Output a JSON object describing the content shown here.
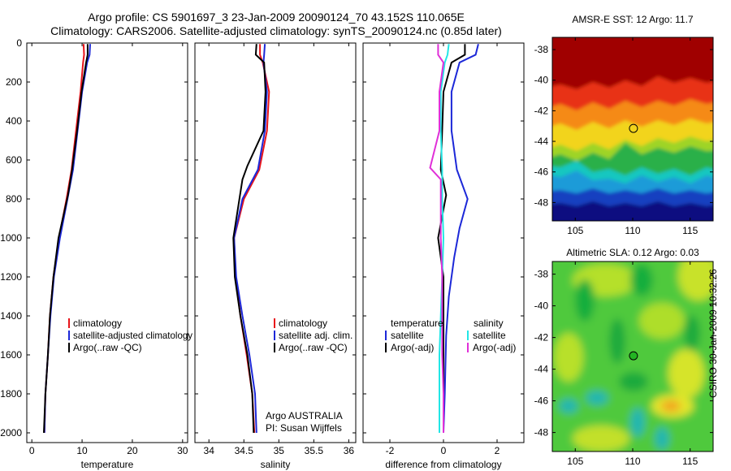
{
  "header": {
    "line1": "Argo profile: CS 5901697_3 23-Jan-2009 20090124_70 43.152S 110.065E",
    "line2": "Climatology: CARS2006. Satellite-adjusted climatology: synTS_20090124.nc (0.85d later)"
  },
  "side_label": "CSIRO 30-Jan-2009 10:32:26",
  "colors": {
    "red": "#e8141a",
    "blue": "#1c28d8",
    "black": "#000000",
    "cyan": "#22e6e6",
    "magenta": "#e030d8",
    "marker_fill": "#22b422"
  },
  "chart_data": [
    {
      "type": "line",
      "xlabel": "temperature",
      "ylabel": "",
      "xlim": [
        -1,
        31
      ],
      "ylim": [
        0,
        2050
      ],
      "x_ticks": [
        0,
        10,
        20,
        30
      ],
      "y_ticks": [
        0,
        200,
        400,
        600,
        800,
        1000,
        1200,
        1400,
        1600,
        1800,
        2000
      ],
      "legend": [
        "climatology",
        "satellite-adjusted climatology",
        "Argo(..raw -QC)"
      ],
      "series": [
        {
          "name": "climatology",
          "color": "red",
          "x": [
            10.3,
            10.4,
            10.2,
            9.7,
            8.8,
            7.9,
            6.9,
            5.4,
            4.3,
            3.6,
            3.2,
            2.7,
            2.5
          ],
          "y": [
            5,
            60,
            100,
            250,
            450,
            650,
            800,
            1000,
            1200,
            1400,
            1600,
            1800,
            2000
          ]
        },
        {
          "name": "satellite-adjusted climatology",
          "color": "blue",
          "x": [
            11.6,
            11.5,
            11.0,
            10.0,
            9.1,
            8.2,
            7.1,
            5.6,
            4.4,
            3.7,
            3.2,
            2.7,
            2.5
          ],
          "y": [
            5,
            60,
            100,
            250,
            450,
            650,
            800,
            1000,
            1200,
            1400,
            1600,
            1800,
            2000
          ]
        },
        {
          "name": "Argo(..raw -QC)",
          "color": "black",
          "x": [
            11.1,
            11.1,
            10.8,
            9.9,
            9.0,
            8.0,
            7.2,
            5.3,
            4.3,
            3.6,
            3.2,
            2.7,
            2.4
          ],
          "y": [
            5,
            60,
            100,
            250,
            450,
            650,
            780,
            1000,
            1200,
            1400,
            1600,
            1800,
            2000
          ]
        }
      ]
    },
    {
      "type": "line",
      "xlabel": "salinity",
      "ylabel": "",
      "xlim": [
        33.8,
        36.1
      ],
      "ylim": [
        0,
        2050
      ],
      "x_ticks": [
        34,
        34.5,
        35,
        35.5,
        36
      ],
      "x_tick_labels": [
        "34",
        "34.5",
        "35",
        "35.5",
        "36"
      ],
      "legend": [
        "climatology",
        "satellite adj. clim.",
        "Argo(..raw -QC)"
      ],
      "annotation": [
        "Argo AUSTRALIA",
        "PI: Susan Wijffels"
      ],
      "series": [
        {
          "name": "climatology",
          "color": "red",
          "x": [
            34.73,
            34.73,
            34.77,
            34.86,
            34.83,
            34.72,
            34.5,
            34.36,
            34.38,
            34.45,
            34.54,
            34.62,
            34.65
          ],
          "y": [
            5,
            60,
            100,
            250,
            450,
            650,
            800,
            1000,
            1200,
            1400,
            1600,
            1800,
            2000
          ]
        },
        {
          "name": "satellite adj. clim.",
          "color": "blue",
          "x": [
            34.8,
            34.79,
            34.78,
            34.83,
            34.8,
            34.7,
            34.48,
            34.36,
            34.39,
            34.48,
            34.58,
            34.66,
            34.68
          ],
          "y": [
            5,
            60,
            100,
            250,
            450,
            650,
            800,
            1000,
            1200,
            1400,
            1600,
            1800,
            2000
          ]
        },
        {
          "name": "Argo(..raw -QC)",
          "color": "black",
          "x": [
            34.68,
            34.67,
            34.79,
            34.81,
            34.78,
            34.55,
            34.48,
            34.35,
            34.37,
            34.45,
            34.55,
            34.62,
            34.64
          ],
          "y": [
            5,
            60,
            100,
            250,
            450,
            630,
            700,
            1000,
            1200,
            1400,
            1600,
            1800,
            2000
          ]
        }
      ]
    },
    {
      "type": "line",
      "xlabel": "difference from climatology",
      "ylabel": "",
      "xlim": [
        -3,
        3
      ],
      "ylim": [
        0,
        2050
      ],
      "x_ticks": [
        -2,
        0,
        2
      ],
      "legend_headers": [
        "temperature",
        "salinity"
      ],
      "legend_left": [
        "satellite",
        "Argo(-adj)"
      ],
      "legend_right": [
        "satellite",
        "Argo(-adj)"
      ],
      "series": [
        {
          "name": "temperature satellite",
          "color": "blue",
          "x": [
            1.3,
            1.2,
            0.6,
            0.3,
            0.3,
            0.5,
            0.9,
            0.6,
            0.4,
            0.2,
            0.1,
            0.05,
            0.0
          ],
          "y": [
            5,
            60,
            100,
            250,
            450,
            650,
            800,
            950,
            1100,
            1300,
            1500,
            1800,
            2000
          ]
        },
        {
          "name": "temperature Argo(-adj)",
          "color": "black",
          "x": [
            0.8,
            0.8,
            0.3,
            0.0,
            -0.05,
            -0.1,
            0.1,
            -0.2,
            0.0,
            0.0,
            0.0,
            0.0,
            0.0
          ],
          "y": [
            5,
            60,
            100,
            250,
            450,
            650,
            780,
            1000,
            1200,
            1400,
            1600,
            1800,
            2000
          ]
        },
        {
          "name": "salinity satellite",
          "color": "cyan",
          "x": [
            0.2,
            0.15,
            0.05,
            -0.1,
            -0.1,
            -0.05,
            -0.05,
            0.0,
            -0.05,
            -0.1,
            -0.15,
            -0.15,
            -0.15
          ],
          "y": [
            5,
            60,
            100,
            250,
            450,
            650,
            800,
            1000,
            1200,
            1400,
            1600,
            1800,
            2000
          ]
        },
        {
          "name": "salinity Argo(-adj)",
          "color": "magenta",
          "x": [
            -0.2,
            -0.2,
            0.0,
            -0.15,
            -0.15,
            -0.5,
            -0.1,
            -0.1,
            -0.05,
            -0.05,
            -0.05,
            0.0,
            0.0
          ],
          "y": [
            5,
            60,
            100,
            250,
            450,
            640,
            700,
            1000,
            1200,
            1400,
            1600,
            1800,
            2000
          ]
        }
      ]
    },
    {
      "type": "heatmap",
      "title": "AMSR-E SST: 12 Argo: 11.7",
      "x_ticks": [
        105,
        110,
        115
      ],
      "y_ticks": [
        -38,
        -40,
        -42,
        -44,
        -46,
        -48
      ],
      "xlim": [
        103,
        117
      ],
      "ylim": [
        -49.2,
        -37.2
      ],
      "marker": {
        "lon": 110.065,
        "lat": -43.152
      }
    },
    {
      "type": "heatmap",
      "title": "Altimetric SLA: 0.12 Argo: 0.03",
      "x_ticks": [
        105,
        110,
        115
      ],
      "y_ticks": [
        -38,
        -40,
        -42,
        -44,
        -46,
        -48
      ],
      "xlim": [
        103,
        117
      ],
      "ylim": [
        -49.2,
        -37.2
      ],
      "marker": {
        "lon": 110.065,
        "lat": -43.152
      }
    }
  ]
}
